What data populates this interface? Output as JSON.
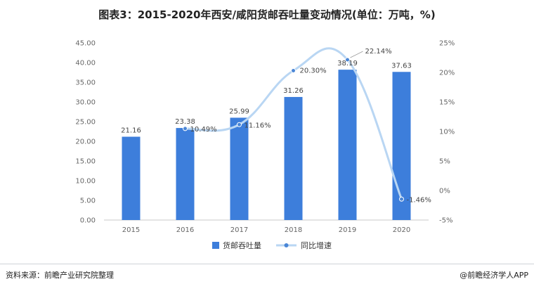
{
  "title": "图表3：2015-2020年西安/咸阳货邮吞吐量变动情况(单位：万吨，%)",
  "footer": {
    "source": "资料来源：前瞻产业研究院整理",
    "copyright": "@前瞻经济学人APP"
  },
  "colors": {
    "bar": "#3d7edb",
    "line": "#b9d6f3",
    "marker": "#4a86d6"
  },
  "chart_data": {
    "type": "bar",
    "categories": [
      "2015",
      "2016",
      "2017",
      "2018",
      "2019",
      "2020"
    ],
    "series": [
      {
        "name": "货邮吞吐量",
        "type": "bar",
        "axis": "left",
        "values": [
          21.16,
          23.38,
          25.99,
          31.26,
          38.19,
          37.63
        ],
        "labels": [
          "21.16",
          "23.38",
          "25.99",
          "31.26",
          "38.19",
          "37.63"
        ]
      },
      {
        "name": "同比增速",
        "type": "line",
        "axis": "right",
        "values": [
          null,
          10.49,
          11.16,
          20.3,
          22.14,
          -1.46
        ],
        "labels": [
          "",
          "10.49%",
          "11.16%",
          "20.30%",
          "22.14%",
          "-1.46%"
        ]
      }
    ],
    "y_left": {
      "ylim": [
        0,
        45
      ],
      "ticks": [
        "0.00",
        "5.00",
        "10.00",
        "15.00",
        "20.00",
        "25.00",
        "30.00",
        "35.00",
        "40.00",
        "45.00"
      ]
    },
    "y_right": {
      "ylim": [
        -5,
        25
      ],
      "ticks": [
        "-5%",
        "0%",
        "5%",
        "10%",
        "15%",
        "20%",
        "25%"
      ]
    },
    "legend_position": "bottom",
    "grid": false
  }
}
